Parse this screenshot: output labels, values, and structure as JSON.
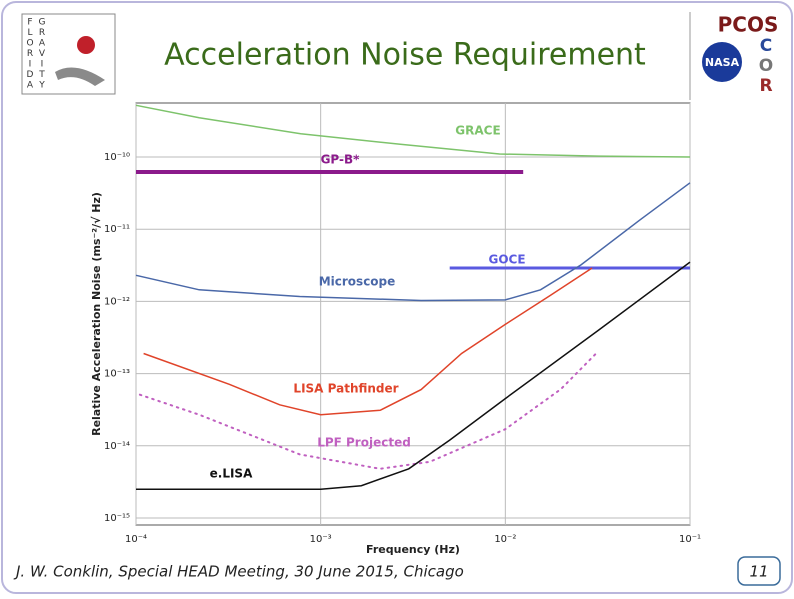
{
  "slide": {
    "title": "Acceleration Noise Requirement",
    "footer": "J. W. Conklin, Special HEAD Meeting, 30 June 2015, Chicago",
    "page_number": "11"
  },
  "logos": {
    "florida": [
      "F",
      "L",
      "O",
      "R",
      "I",
      "D",
      "A"
    ],
    "gravity": [
      "G",
      "R",
      "A",
      "V",
      "I",
      "T",
      "Y"
    ],
    "pcos": "PCOS",
    "nasa": "NASA",
    "cor": [
      "C",
      "O",
      "R"
    ]
  },
  "chart_data": {
    "type": "line",
    "x_label": "Frequency (Hz)",
    "y_label": "Relative Acceleration Noise (ms⁻²/√ Hz)",
    "log_x": true,
    "log_y": true,
    "grid": true,
    "xlim": [
      0.0001,
      0.1
    ],
    "ylim": [
      8e-16,
      5.6e-10
    ],
    "xticks": [
      {
        "value": 0.0001,
        "label": "10⁻⁴"
      },
      {
        "value": 0.001,
        "label": "10⁻³"
      },
      {
        "value": 0.01,
        "label": "10⁻²"
      },
      {
        "value": 0.1,
        "label": "10⁻¹"
      }
    ],
    "yticks": [
      {
        "value": 1e-15,
        "label": "10⁻¹⁵"
      },
      {
        "value": 1e-14,
        "label": "10⁻¹⁴"
      },
      {
        "value": 1e-13,
        "label": "10⁻¹³"
      },
      {
        "value": 1e-12,
        "label": "10⁻¹²"
      },
      {
        "value": 1e-11,
        "label": "10⁻¹¹"
      },
      {
        "value": 1e-10,
        "label": "10⁻¹⁰"
      }
    ],
    "series": [
      {
        "name": "GRACE",
        "color": "#7dc36b",
        "style": "solid",
        "width": 1.5,
        "x": [
          0.0001,
          0.00022,
          0.00078,
          0.0027,
          0.0093,
          0.032,
          0.1
        ],
        "values": [
          5.2e-10,
          3.5e-10,
          2.1e-10,
          1.5e-10,
          1.1e-10,
          1.03e-10,
          1e-10
        ]
      },
      {
        "name": "GP-B*",
        "color": "#8b1a8b",
        "style": "solid",
        "width": 4,
        "x": [
          0.0001,
          0.0125
        ],
        "values": [
          6.2e-11,
          6.2e-11
        ]
      },
      {
        "name": "GOCE",
        "color": "#5a5ae0",
        "style": "solid",
        "width": 3,
        "x": [
          0.005,
          0.1
        ],
        "values": [
          2.9e-12,
          2.9e-12
        ]
      },
      {
        "name": "Microscope",
        "color": "#4a68a8",
        "style": "solid",
        "width": 1.5,
        "x": [
          0.0001,
          0.00022,
          0.00077,
          0.0035,
          0.01,
          0.0155,
          0.0257,
          0.0537,
          0.1
        ],
        "values": [
          2.3e-12,
          1.45e-12,
          1.17e-12,
          1.03e-12,
          1.05e-12,
          1.45e-12,
          3.2e-12,
          1.35e-11,
          4.4e-11
        ]
      },
      {
        "name": "LISA Pathfinder",
        "color": "#e0442a",
        "style": "solid",
        "width": 1.5,
        "x": [
          0.00011,
          0.00032,
          0.0006,
          0.001,
          0.0021,
          0.0035,
          0.0058,
          0.01,
          0.0174,
          0.0295
        ],
        "values": [
          1.9e-13,
          7.1e-14,
          3.7e-14,
          2.7e-14,
          3.1e-14,
          6e-14,
          1.9e-13,
          4.8e-13,
          1.2e-12,
          2.9e-12
        ]
      },
      {
        "name": "LPF Projected",
        "color": "#c060c0",
        "style": "dotted",
        "width": 2,
        "x": [
          0.000105,
          0.00022,
          0.00077,
          0.0021,
          0.0039,
          0.01,
          0.02,
          0.031
        ],
        "values": [
          5.1e-14,
          2.7e-14,
          7.6e-15,
          4.8e-15,
          6e-15,
          1.7e-14,
          6.1e-14,
          1.9e-13
        ]
      },
      {
        "name": "e.LISA",
        "color": "#111111",
        "style": "solid",
        "width": 1.5,
        "x": [
          0.0001,
          0.001,
          0.00166,
          0.003,
          0.005,
          0.01,
          0.032,
          0.1
        ],
        "values": [
          2.5e-15,
          2.5e-15,
          2.8e-15,
          4.8e-15,
          1.2e-14,
          4.5e-14,
          4e-13,
          3.5e-12
        ]
      }
    ]
  }
}
